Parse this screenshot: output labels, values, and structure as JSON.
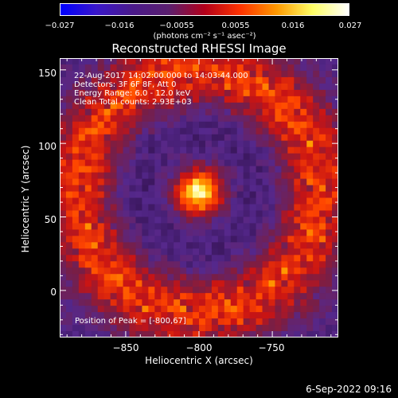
{
  "colorbar": {
    "min": -0.027,
    "max": 0.027,
    "tick_labels": [
      "−0.027",
      "−0.016",
      "−0.0055",
      "0.0055",
      "0.016",
      "0.027"
    ],
    "tick_values": [
      -0.027,
      -0.016,
      -0.0055,
      0.0055,
      0.016,
      0.027
    ],
    "units": "(photons cm⁻² s⁻¹ asec⁻²)",
    "colors": [
      "#0000ff",
      "#3a17c9",
      "#4a1a8a",
      "#5a1f6e",
      "#b3001a",
      "#ff3300",
      "#ff9900",
      "#ffff66",
      "#ffffff"
    ]
  },
  "chart_data": {
    "type": "heatmap",
    "title": "Reconstructed RHESSI Image",
    "xlabel": "Heliocentric X (arcsec)",
    "ylabel": "Heliocentric Y (arcsec)",
    "xlim": [
      -895,
      -705
    ],
    "ylim": [
      -32,
      158
    ],
    "x_ticks": [
      -850,
      -800,
      -750
    ],
    "x_tick_labels": [
      "−850",
      "−800",
      "−750"
    ],
    "y_ticks": [
      0,
      50,
      100,
      150
    ],
    "y_tick_labels": [
      "0",
      "50",
      "100",
      "150"
    ],
    "peak": {
      "x": -800,
      "y": 67
    },
    "annotations": {
      "time": "22-Aug-2017 14:02:00.000 to 14:03:44.000",
      "detectors": "Detectors: 3F 6F 8F, Att 0",
      "energy": "Energy Range: 6.0 - 12.0 keV",
      "clean": "Clean     Total counts: 2.93E+03",
      "peak_text": "Position of Peak = [-800,67]"
    }
  },
  "footer": {
    "date": "6-Sep-2022 09:16"
  }
}
